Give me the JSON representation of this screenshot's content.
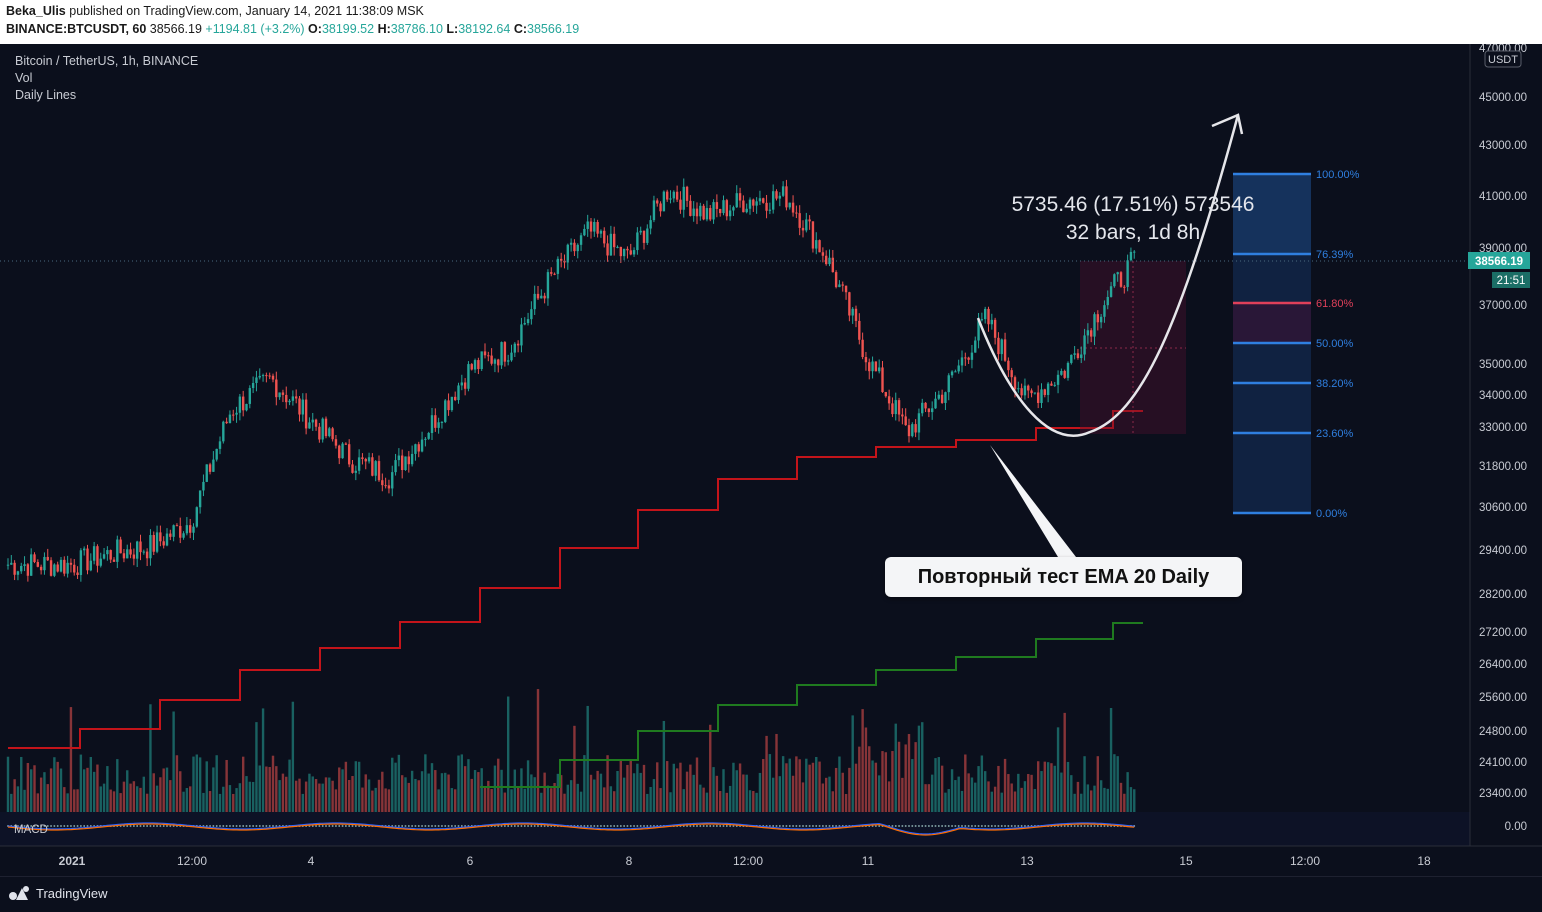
{
  "header": {
    "author": "Beka_Ulis",
    "published_text": "published on TradingView.com, January 14, 2021 11:38:09 MSK",
    "symbol": "BINANCE:BTCUSDT, 60",
    "price": "38566.19",
    "change": "+1194.81 (+3.2%)",
    "o_label": "O:",
    "o_val": "38199.52",
    "h_label": "H:",
    "h_val": "38786.10",
    "l_label": "L:",
    "l_val": "38192.64",
    "c_label": "C:",
    "c_val": "38566.19"
  },
  "legend": {
    "title": "Bitcoin / TetherUS, 1h, BINANCE",
    "vol": "Vol",
    "daily": "Daily Lines"
  },
  "macd_label": "MACD",
  "currency_badge": "USDT",
  "last_price": {
    "value": "38566.19",
    "countdown": "21:51"
  },
  "measure": {
    "line1": "5735.46 (17.51%) 573546",
    "line2": "32 bars, 1d 8h"
  },
  "callout_text": "Повторный тест EMA 20 Daily",
  "branding": "TradingView",
  "colors": {
    "up": "#26a69a",
    "down": "#ef5350",
    "ema": "#c4141a",
    "ema2": "#1f7a1f",
    "fib": "#2f7fe0",
    "bg": "#0b0f1c"
  },
  "chart_data": {
    "type": "candlestick",
    "x_ticks": [
      "2021",
      "12:00",
      "4",
      "6",
      "8",
      "12:00",
      "11",
      "13",
      "15",
      "12:00",
      "18"
    ],
    "y_ticks": [
      "47000.00",
      "45000.00",
      "43000.00",
      "41000.00",
      "39000.00",
      "37000.00",
      "35000.00",
      "34000.00",
      "33000.00",
      "31800.00",
      "30600.00",
      "29400.00",
      "28200.00",
      "27200.00",
      "26400.00",
      "25600.00",
      "24800.00",
      "24100.00",
      "23400.00"
    ],
    "macd_tick": "0.00",
    "ylim": [
      23000,
      47500
    ],
    "y_scale": "log",
    "price_path": [
      {
        "date": "2021-01-01 00:00",
        "close": 29000
      },
      {
        "date": "2021-01-01 12:00",
        "close": 29300
      },
      {
        "date": "2021-01-02 00:00",
        "close": 29500
      },
      {
        "date": "2021-01-02 12:00",
        "close": 30200
      },
      {
        "date": "2021-01-03 00:00",
        "close": 33500
      },
      {
        "date": "2021-01-03 12:00",
        "close": 34500
      },
      {
        "date": "2021-01-04 00:00",
        "close": 33200
      },
      {
        "date": "2021-01-04 12:00",
        "close": 32000
      },
      {
        "date": "2021-01-05 00:00",
        "close": 31500
      },
      {
        "date": "2021-01-05 12:00",
        "close": 33000
      },
      {
        "date": "2021-01-06 00:00",
        "close": 34800
      },
      {
        "date": "2021-01-06 12:00",
        "close": 35500
      },
      {
        "date": "2021-01-07 00:00",
        "close": 37800
      },
      {
        "date": "2021-01-07 12:00",
        "close": 39600
      },
      {
        "date": "2021-01-08 00:00",
        "close": 38600
      },
      {
        "date": "2021-01-08 12:00",
        "close": 41200
      },
      {
        "date": "2021-01-09 00:00",
        "close": 40200
      },
      {
        "date": "2021-01-09 12:00",
        "close": 40800
      },
      {
        "date": "2021-01-10 00:00",
        "close": 40900
      },
      {
        "date": "2021-01-10 12:00",
        "close": 38600
      },
      {
        "date": "2021-01-11 00:00",
        "close": 35200
      },
      {
        "date": "2021-01-11 12:00",
        "close": 32800
      },
      {
        "date": "2021-01-12 00:00",
        "close": 34200
      },
      {
        "date": "2021-01-12 12:00",
        "close": 36500
      },
      {
        "date": "2021-01-13 00:00",
        "close": 33800
      },
      {
        "date": "2021-01-13 12:00",
        "close": 34800
      },
      {
        "date": "2021-01-14 00:00",
        "close": 37200
      },
      {
        "date": "2021-01-14 09:00",
        "close": 38566
      }
    ],
    "ema20_daily_steps": [
      28200,
      28500,
      28900,
      29300,
      29700,
      30200,
      30700,
      31200,
      31600,
      32000,
      32300,
      32600,
      32900,
      33300
    ],
    "fibonacci": [
      {
        "level": "100.00%",
        "label_color": "#2f7fe0"
      },
      {
        "level": "76.39%",
        "label_color": "#2f7fe0"
      },
      {
        "level": "61.80%",
        "label_color": "#e0405a"
      },
      {
        "level": "50.00%",
        "label_color": "#2f7fe0"
      },
      {
        "level": "38.20%",
        "label_color": "#2f7fe0"
      },
      {
        "level": "23.60%",
        "label_color": "#2f7fe0"
      },
      {
        "level": "0.00%",
        "label_color": "#2f7fe0"
      }
    ]
  }
}
